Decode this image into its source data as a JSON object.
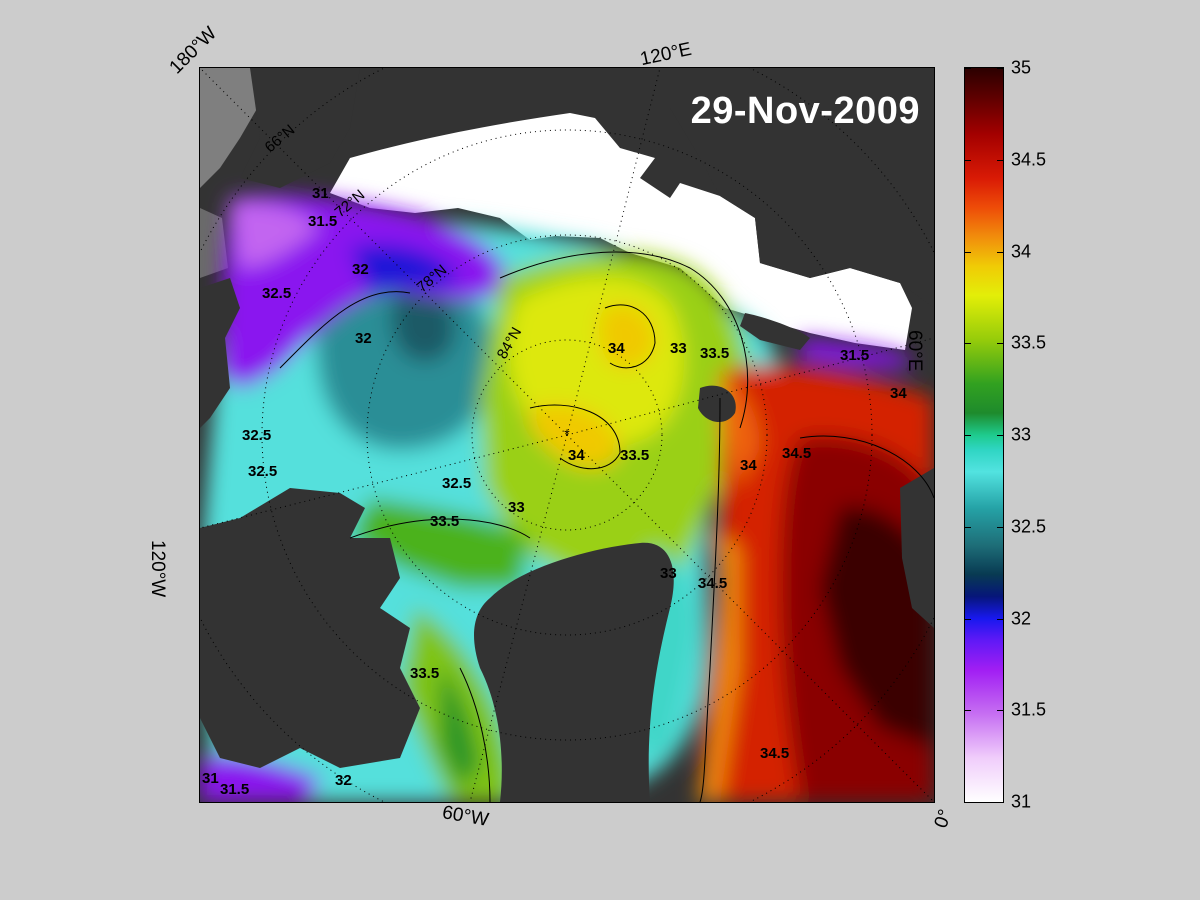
{
  "date_title": "29-Nov-2009",
  "edge_labels": {
    "top_left": "180°W",
    "top_center": "120°E",
    "right": "60°E",
    "left": "120°W",
    "bottom_center": "60°W",
    "bottom_right": "0°"
  },
  "grid_labels": [
    "66°N",
    "72°N",
    "78°N",
    "84°N"
  ],
  "contour_labels": {
    "l31": "31",
    "l31_5": "31.5",
    "l32": "32",
    "l32_5": "32.5",
    "l33": "33",
    "l33_5": "33.5",
    "l34": "34",
    "l34_5": "34.5"
  },
  "colorbar": {
    "ticks": [
      "35",
      "34.5",
      "34",
      "33.5",
      "33",
      "32.5",
      "32",
      "31.5",
      "31"
    ],
    "min": 31,
    "max": 35
  },
  "colors": {
    "background": "#cccccc",
    "land": "#333333",
    "ice": "#ffffff",
    "shelf_ice": "#808080"
  }
}
